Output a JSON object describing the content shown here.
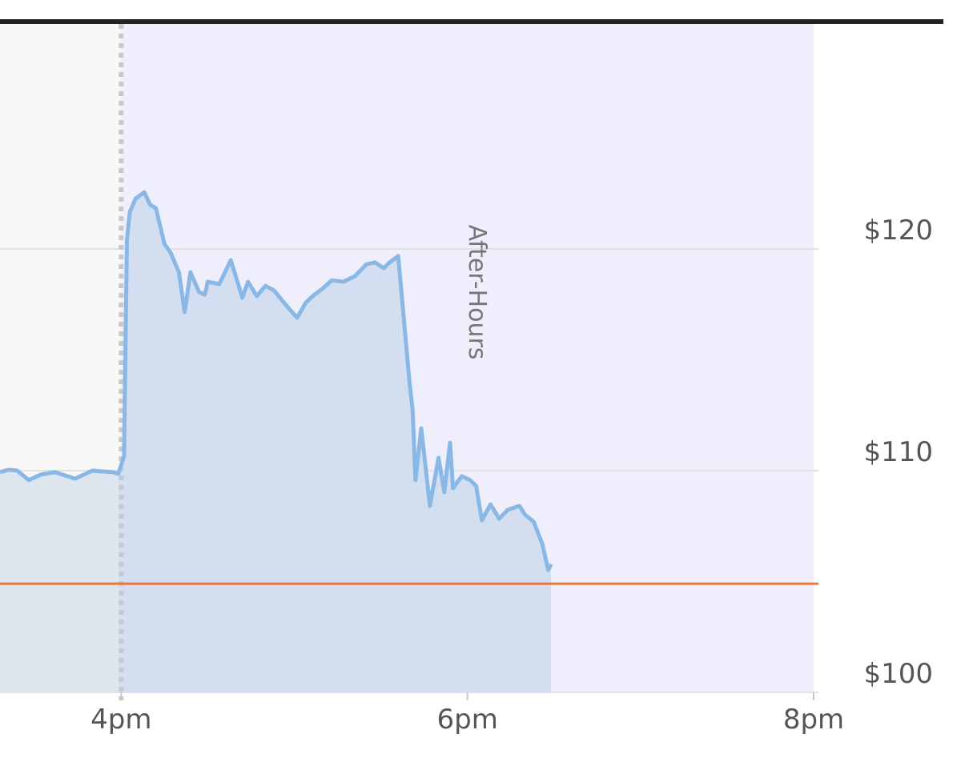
{
  "chart_data": {
    "type": "area",
    "title": "",
    "xlabel": "",
    "ylabel": "",
    "x_ticks": [
      "4pm",
      "6pm",
      "8pm"
    ],
    "x_tick_times": [
      "16:00",
      "18:00",
      "20:00"
    ],
    "y_ticks": [
      "$100",
      "$110",
      "$120"
    ],
    "y_tick_values": [
      100,
      110,
      120
    ],
    "xlim": [
      "15:18",
      "20:00"
    ],
    "ylim": [
      100,
      123.5
    ],
    "grid": "horizontal",
    "session_label": "After-Hours",
    "after_hours_start": "16:00",
    "reference_line": {
      "value": 104.9
    },
    "colors": {
      "line": "#8ab8e6",
      "fill": "#d3dff0",
      "regular_fill": "#dde5ee",
      "regular_bg": "#f7f7f7",
      "after_hours_bg": "#eeeefc",
      "reference_line": "#e07b45",
      "grid": "#e2e2e2",
      "top_bar": "#222222"
    },
    "series": [
      {
        "x": [
          "15:18",
          "15:21",
          "15:24",
          "15:28",
          "15:32",
          "15:37",
          "15:44",
          "15:50",
          "15:57",
          "15:59",
          "16:01",
          "16:02",
          "16:03",
          "16:05",
          "16:08",
          "16:10",
          "16:12",
          "16:15",
          "16:17",
          "16:20",
          "16:22",
          "16:24",
          "16:27",
          "16:29",
          "16:30",
          "16:34",
          "16:38",
          "16:42",
          "16:44",
          "16:47",
          "16:50",
          "16:53",
          "16:58",
          "17:01",
          "17:04",
          "17:07",
          "17:10",
          "17:13",
          "17:17",
          "17:21",
          "17:25",
          "17:28",
          "17:31",
          "17:33",
          "17:36",
          "17:38",
          "17:40",
          "17:41",
          "17:42",
          "17:44",
          "17:47",
          "17:50",
          "17:52",
          "17:54",
          "17:55",
          "17:58",
          "18:01",
          "18:03",
          "18:05",
          "18:08",
          "18:11",
          "18:14",
          "18:18",
          "18:20",
          "18:23",
          "18:26",
          "18:28",
          "18:29"
        ],
        "values": [
          109.93,
          110.04,
          110.0,
          109.57,
          109.82,
          109.93,
          109.64,
          110.0,
          109.93,
          109.86,
          110.65,
          120.4,
          121.66,
          122.27,
          122.56,
          122.0,
          121.84,
          120.22,
          119.86,
          118.95,
          117.15,
          118.95,
          118.05,
          117.94,
          118.52,
          118.41,
          119.49,
          117.8,
          118.52,
          117.87,
          118.34,
          118.12,
          117.33,
          116.9,
          117.58,
          117.94,
          118.23,
          118.59,
          118.52,
          118.77,
          119.31,
          119.39,
          119.13,
          119.39,
          119.68,
          116.79,
          113.9,
          112.74,
          109.57,
          111.91,
          108.41,
          110.58,
          109.03,
          111.26,
          109.21,
          109.75,
          109.57,
          109.31,
          107.76,
          108.48,
          107.83,
          108.23,
          108.41,
          108.01,
          107.69,
          106.68,
          105.52,
          105.78
        ]
      }
    ]
  }
}
